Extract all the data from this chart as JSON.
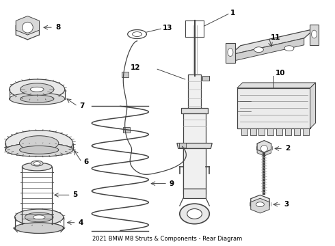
{
  "title": "2021 BMW M8 Struts & Components - Rear Diagram",
  "background_color": "#ffffff",
  "line_color": "#444444",
  "label_color": "#000000",
  "fig_width": 4.9,
  "fig_height": 3.6,
  "dpi": 100
}
